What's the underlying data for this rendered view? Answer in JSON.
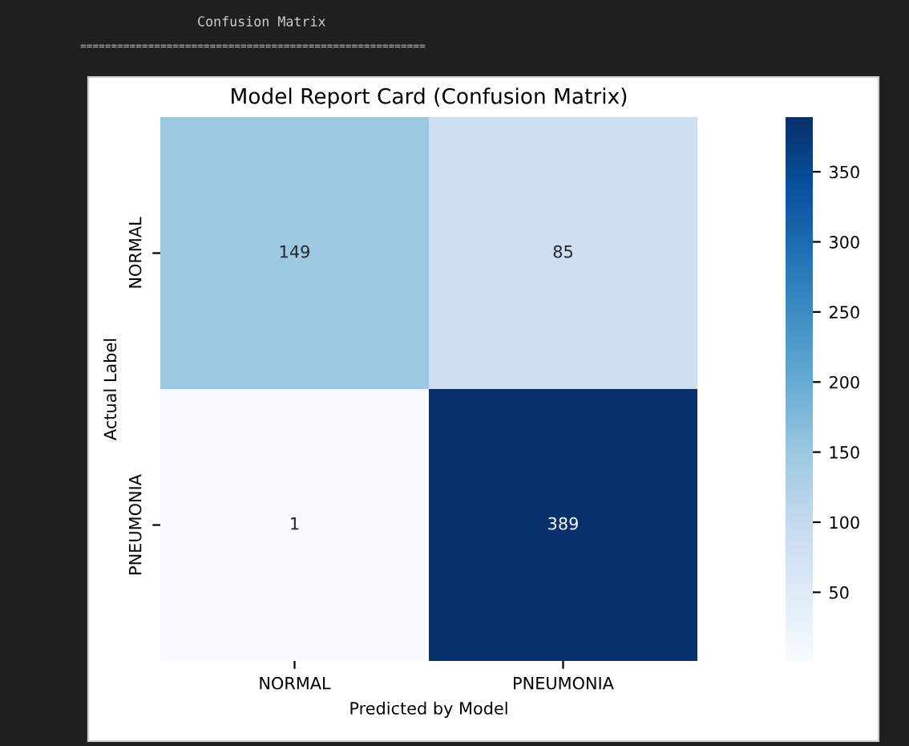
{
  "chart_data": {
    "type": "heatmap",
    "title": "Model Report Card (Confusion Matrix)",
    "xlabel": "Predicted by Model",
    "ylabel": "Actual Label",
    "categories": [
      "NORMAL",
      "PNEUMONIA"
    ],
    "y_categories": [
      "NORMAL",
      "PNEUMONIA"
    ],
    "cells": [
      [
        149,
        85
      ],
      [
        1,
        389
      ]
    ],
    "data_labels": true,
    "clim": [
      1,
      389
    ],
    "cticks": [
      50,
      100,
      150,
      200,
      250,
      300,
      350
    ],
    "annotations": [
      "Confusion Matrix",
      "========================================================"
    ]
  }
}
